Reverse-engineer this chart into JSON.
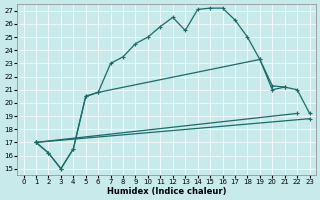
{
  "bg_color": "#c8eaea",
  "line_color": "#1a6b6b",
  "xlabel": "Humidex (Indice chaleur)",
  "xlim": [
    -0.5,
    23.5
  ],
  "ylim": [
    14.5,
    27.5
  ],
  "xticks": [
    0,
    1,
    2,
    3,
    4,
    5,
    6,
    7,
    8,
    9,
    10,
    11,
    12,
    13,
    14,
    15,
    16,
    17,
    18,
    19,
    20,
    21,
    22,
    23
  ],
  "yticks": [
    15,
    16,
    17,
    18,
    19,
    20,
    21,
    22,
    23,
    24,
    25,
    26,
    27
  ],
  "curve1_x": [
    1,
    2,
    3,
    4,
    5,
    6,
    7,
    8,
    9,
    10,
    11,
    12,
    13,
    14,
    15,
    16,
    17,
    18,
    19,
    20,
    21
  ],
  "curve1_y": [
    17.0,
    16.2,
    15.0,
    16.5,
    20.5,
    20.8,
    23.0,
    23.5,
    24.5,
    25.0,
    25.8,
    26.5,
    25.5,
    27.1,
    27.2,
    27.2,
    26.3,
    25.0,
    23.3,
    21.0,
    21.2
  ],
  "curve2_x": [
    1,
    2,
    3,
    4,
    5,
    6,
    19,
    20,
    21,
    22,
    23
  ],
  "curve2_y": [
    17.0,
    16.2,
    15.0,
    16.5,
    20.5,
    20.8,
    23.3,
    21.3,
    21.2,
    21.0,
    19.2
  ],
  "line3_x": [
    1,
    22
  ],
  "line3_y": [
    17.0,
    19.2
  ],
  "line4_x": [
    1,
    23
  ],
  "line4_y": [
    17.0,
    18.8
  ]
}
